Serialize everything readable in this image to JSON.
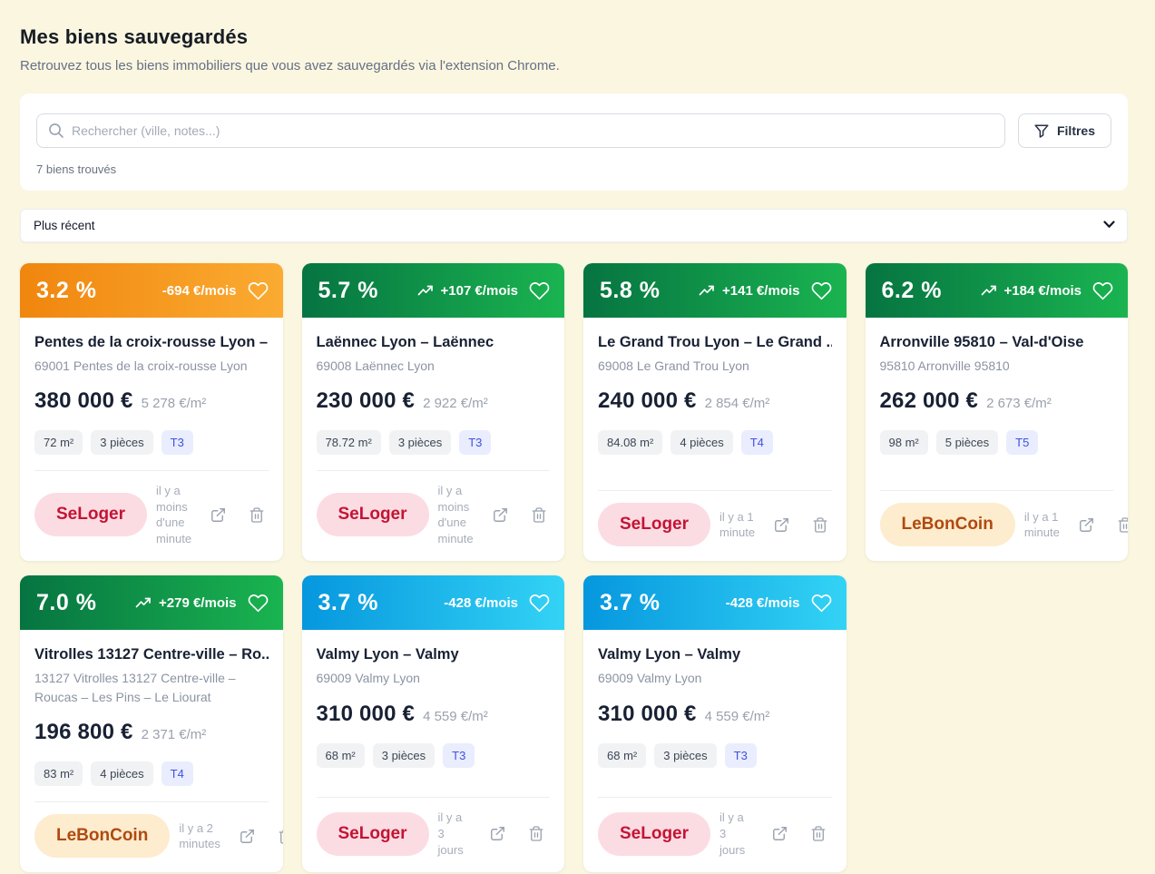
{
  "page": {
    "title": "Mes biens sauvegardés",
    "subtitle": "Retrouvez tous les biens immobiliers que vous avez sauvegardés via l'extension Chrome."
  },
  "toolbar": {
    "search_placeholder": "Rechercher (ville, notes...)",
    "filters_label": "Filtres",
    "results_count": "7 biens trouvés"
  },
  "sort": {
    "selected": "Plus récent",
    "options": [
      "Plus récent"
    ]
  },
  "colors": {
    "page_background": "#fbf6e0",
    "header_orange": [
      "#f0860e",
      "#fbab32"
    ],
    "header_green": [
      "#067441",
      "#1ab450"
    ],
    "header_blue": [
      "#0697de",
      "#33d3f5"
    ],
    "seloger_badge": {
      "background": "#fcdce3",
      "text": "#c41434"
    },
    "leboncoin_badge": {
      "background": "#fdeccd",
      "text": "#b04a10"
    },
    "type_tag": {
      "background": "#e9edfd",
      "text": "#4050e0"
    }
  },
  "cards": [
    {
      "theme": "orange",
      "yield": "3.2 %",
      "cashflow": "-694 €/mois",
      "trend_up": false,
      "title": "Pentes de la croix-rousse Lyon – ...",
      "location": "69001 Pentes de la croix-rousse Lyon",
      "price": "380 000 €",
      "price_per_m2": "5 278 €/m²",
      "tags": [
        "72 m²",
        "3 pièces"
      ],
      "type_tag": "T3",
      "source": "SeLoger",
      "source_theme": "seloger",
      "saved_ago": "il y a moins d'une minute"
    },
    {
      "theme": "green",
      "yield": "5.7 %",
      "cashflow": "+107 €/mois",
      "trend_up": true,
      "title": "Laënnec Lyon – Laënnec",
      "location": "69008 Laënnec Lyon",
      "price": "230 000 €",
      "price_per_m2": "2 922 €/m²",
      "tags": [
        "78.72 m²",
        "3 pièces"
      ],
      "type_tag": "T3",
      "source": "SeLoger",
      "source_theme": "seloger",
      "saved_ago": "il y a moins d'une minute"
    },
    {
      "theme": "green",
      "yield": "5.8 %",
      "cashflow": "+141 €/mois",
      "trend_up": true,
      "title": "Le Grand Trou Lyon – Le Grand ...",
      "location": "69008 Le Grand Trou Lyon",
      "price": "240 000 €",
      "price_per_m2": "2 854 €/m²",
      "tags": [
        "84.08 m²",
        "4 pièces"
      ],
      "type_tag": "T4",
      "source": "SeLoger",
      "source_theme": "seloger",
      "saved_ago": "il y a 1 minute"
    },
    {
      "theme": "green",
      "yield": "6.2 %",
      "cashflow": "+184 €/mois",
      "trend_up": true,
      "title": "Arronville 95810 – Val-d'Oise",
      "location": "95810 Arronville 95810",
      "price": "262 000 €",
      "price_per_m2": "2 673 €/m²",
      "tags": [
        "98 m²",
        "5 pièces"
      ],
      "type_tag": "T5",
      "source": "LeBonCoin",
      "source_theme": "leboncoin",
      "saved_ago": "il y a 1 minute"
    },
    {
      "theme": "green",
      "yield": "7.0 %",
      "cashflow": "+279 €/mois",
      "trend_up": true,
      "title": "Vitrolles 13127 Centre-ville – Ro...",
      "location": "13127 Vitrolles 13127 Centre-ville – Roucas – Les Pins – Le Liourat",
      "price": "196 800 €",
      "price_per_m2": "2 371 €/m²",
      "tags": [
        "83 m²",
        "4 pièces"
      ],
      "type_tag": "T4",
      "source": "LeBonCoin",
      "source_theme": "leboncoin",
      "saved_ago": "il y a 2 minutes"
    },
    {
      "theme": "blue",
      "yield": "3.7 %",
      "cashflow": "-428 €/mois",
      "trend_up": false,
      "title": "Valmy Lyon – Valmy",
      "location": "69009 Valmy Lyon",
      "price": "310 000 €",
      "price_per_m2": "4 559 €/m²",
      "tags": [
        "68 m²",
        "3 pièces"
      ],
      "type_tag": "T3",
      "source": "SeLoger",
      "source_theme": "seloger",
      "saved_ago": "il y a 3 jours"
    },
    {
      "theme": "blue",
      "yield": "3.7 %",
      "cashflow": "-428 €/mois",
      "trend_up": false,
      "title": "Valmy Lyon – Valmy",
      "location": "69009 Valmy Lyon",
      "price": "310 000 €",
      "price_per_m2": "4 559 €/m²",
      "tags": [
        "68 m²",
        "3 pièces"
      ],
      "type_tag": "T3",
      "source": "SeLoger",
      "source_theme": "seloger",
      "saved_ago": "il y a 3 jours"
    }
  ]
}
